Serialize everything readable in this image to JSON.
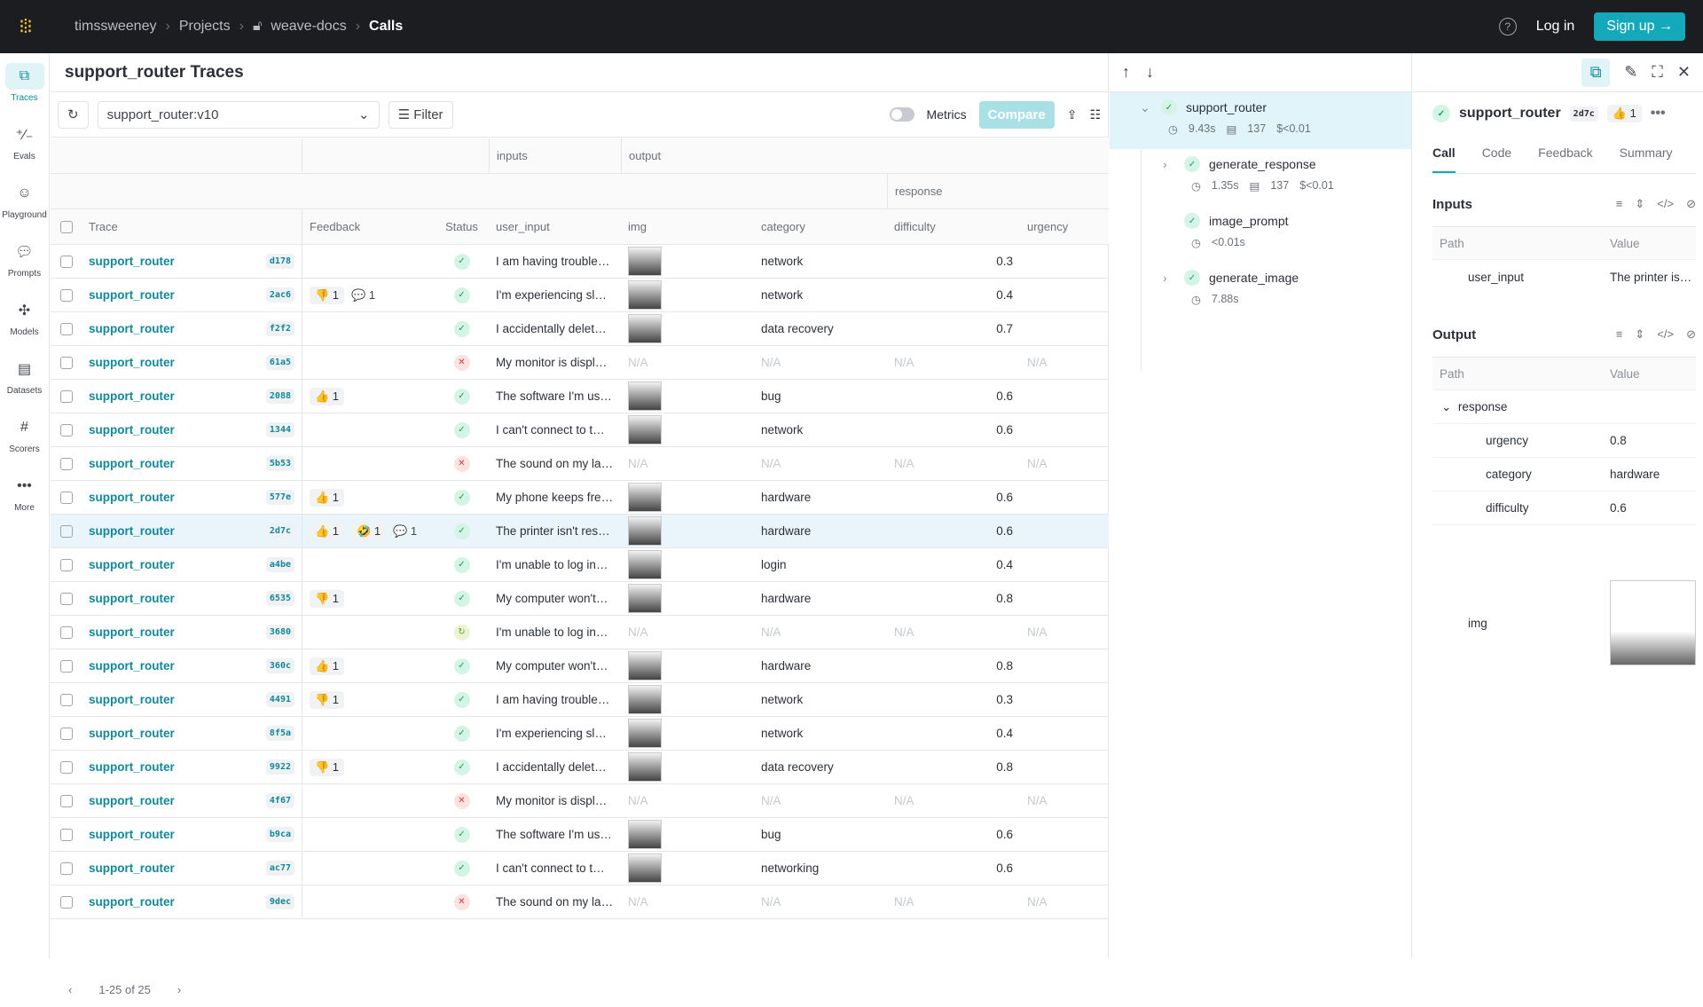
{
  "topbar": {
    "crumbs": [
      "timssweeney",
      "Projects",
      "weave-docs",
      "Calls"
    ],
    "help": "?",
    "login": "Log in",
    "signup": "Sign up"
  },
  "sidebar": [
    {
      "label": "Traces",
      "icon": "traces-icon"
    },
    {
      "label": "Evals",
      "icon": "evals-icon"
    },
    {
      "label": "Playground",
      "icon": "playground-icon"
    },
    {
      "label": "Prompts",
      "icon": "prompts-icon"
    },
    {
      "label": "Models",
      "icon": "models-icon"
    },
    {
      "label": "Datasets",
      "icon": "datasets-icon"
    },
    {
      "label": "Scorers",
      "icon": "scorers-icon"
    },
    {
      "label": "More",
      "icon": "more-icon"
    }
  ],
  "page": {
    "title": "support_router Traces",
    "select": "support_router:v10",
    "filter": "Filter",
    "metrics": "Metrics",
    "compare": "Compare"
  },
  "headers": {
    "inputs": "inputs",
    "output": "output",
    "response": "response",
    "trace": "Trace",
    "feedback": "Feedback",
    "status": "Status",
    "user_input": "user_input",
    "img": "img",
    "category": "category",
    "difficulty": "difficulty",
    "urgency": "urgency"
  },
  "na": "N/A",
  "rows": [
    {
      "name": "support_router",
      "hash": "d178",
      "fb": [],
      "status": "ok",
      "input": "I am having trouble…",
      "category": "network",
      "difficulty": "0.3"
    },
    {
      "name": "support_router",
      "hash": "2ac6",
      "fb": [
        "👎 1",
        "💬 1"
      ],
      "status": "ok",
      "input": "I'm experiencing sl…",
      "category": "network",
      "difficulty": "0.4"
    },
    {
      "name": "support_router",
      "hash": "f2f2",
      "fb": [],
      "status": "ok",
      "input": "I accidentally delet…",
      "category": "data recovery",
      "difficulty": "0.7"
    },
    {
      "name": "support_router",
      "hash": "61a5",
      "fb": [],
      "status": "err",
      "input": "My monitor is displ…",
      "category": null,
      "difficulty": null
    },
    {
      "name": "support_router",
      "hash": "2088",
      "fb": [
        "👍 1"
      ],
      "status": "ok",
      "input": "The software I'm us…",
      "category": "bug",
      "difficulty": "0.6"
    },
    {
      "name": "support_router",
      "hash": "1344",
      "fb": [],
      "status": "ok",
      "input": "I can't connect to t…",
      "category": "network",
      "difficulty": "0.6"
    },
    {
      "name": "support_router",
      "hash": "5b53",
      "fb": [],
      "status": "err",
      "input": "The sound on my la…",
      "category": null,
      "difficulty": null
    },
    {
      "name": "support_router",
      "hash": "577e",
      "fb": [
        "👍 1"
      ],
      "status": "ok",
      "input": "My phone keeps fre…",
      "category": "hardware",
      "difficulty": "0.6"
    },
    {
      "name": "support_router",
      "hash": "2d7c",
      "fb": [
        "👍 1",
        "🤣 1",
        "💬 1"
      ],
      "status": "ok",
      "input": "The printer isn't res…",
      "category": "hardware",
      "difficulty": "0.6",
      "selected": true
    },
    {
      "name": "support_router",
      "hash": "a4be",
      "fb": [],
      "status": "ok",
      "input": "I'm unable to log in…",
      "category": "login",
      "difficulty": "0.4"
    },
    {
      "name": "support_router",
      "hash": "6535",
      "fb": [
        "👎 1"
      ],
      "status": "ok",
      "input": "My computer won't…",
      "category": "hardware",
      "difficulty": "0.8"
    },
    {
      "name": "support_router",
      "hash": "3680",
      "fb": [],
      "status": "run",
      "input": "I'm unable to log in…",
      "category": null,
      "difficulty": null
    },
    {
      "name": "support_router",
      "hash": "360c",
      "fb": [
        "👍 1"
      ],
      "status": "ok",
      "input": "My computer won't…",
      "category": "hardware",
      "difficulty": "0.8"
    },
    {
      "name": "support_router",
      "hash": "4491",
      "fb": [
        "👎 1"
      ],
      "status": "ok",
      "input": "I am having trouble…",
      "category": "network",
      "difficulty": "0.3"
    },
    {
      "name": "support_router",
      "hash": "8f5a",
      "fb": [],
      "status": "ok",
      "input": "I'm experiencing sl…",
      "category": "network",
      "difficulty": "0.4"
    },
    {
      "name": "support_router",
      "hash": "9922",
      "fb": [
        "👎 1"
      ],
      "status": "ok",
      "input": "I accidentally delet…",
      "category": "data recovery",
      "difficulty": "0.8"
    },
    {
      "name": "support_router",
      "hash": "4f67",
      "fb": [],
      "status": "err",
      "input": "My monitor is displ…",
      "category": null,
      "difficulty": null
    },
    {
      "name": "support_router",
      "hash": "b9ca",
      "fb": [],
      "status": "ok",
      "input": "The software I'm us…",
      "category": "bug",
      "difficulty": "0.6"
    },
    {
      "name": "support_router",
      "hash": "ac77",
      "fb": [],
      "status": "ok",
      "input": "I can't connect to t…",
      "category": "networking",
      "difficulty": "0.6"
    },
    {
      "name": "support_router",
      "hash": "9dec",
      "fb": [],
      "status": "err",
      "input": "The sound on my la…",
      "category": null,
      "difficulty": null
    }
  ],
  "pager": {
    "range": "1-25 of 25"
  },
  "tree": [
    {
      "name": "support_router",
      "time": "9.43s",
      "tokens": "137",
      "cost": "$<0.01"
    },
    {
      "name": "generate_response",
      "time": "1.35s",
      "tokens": "137",
      "cost": "$<0.01"
    },
    {
      "name": "image_prompt",
      "time": "<0.01s"
    },
    {
      "name": "generate_image",
      "time": "7.88s"
    }
  ],
  "detail": {
    "name": "support_router",
    "hash": "2d7c",
    "reaction": "👍 1",
    "tabs": [
      "Call",
      "Code",
      "Feedback",
      "Summary"
    ],
    "inputs": {
      "title": "Inputs",
      "path": "Path",
      "value": "Value",
      "rows": [
        {
          "k": "user_input",
          "v": "The printer is…"
        }
      ]
    },
    "output": {
      "title": "Output",
      "path": "Path",
      "value": "Value",
      "group": "response",
      "rows": [
        {
          "k": "urgency",
          "v": "0.8"
        },
        {
          "k": "category",
          "v": "hardware"
        },
        {
          "k": "difficulty",
          "v": "0.6"
        }
      ],
      "img": "img"
    }
  },
  "colors": {
    "accent": "#13a9ba",
    "link": "#10879a"
  }
}
